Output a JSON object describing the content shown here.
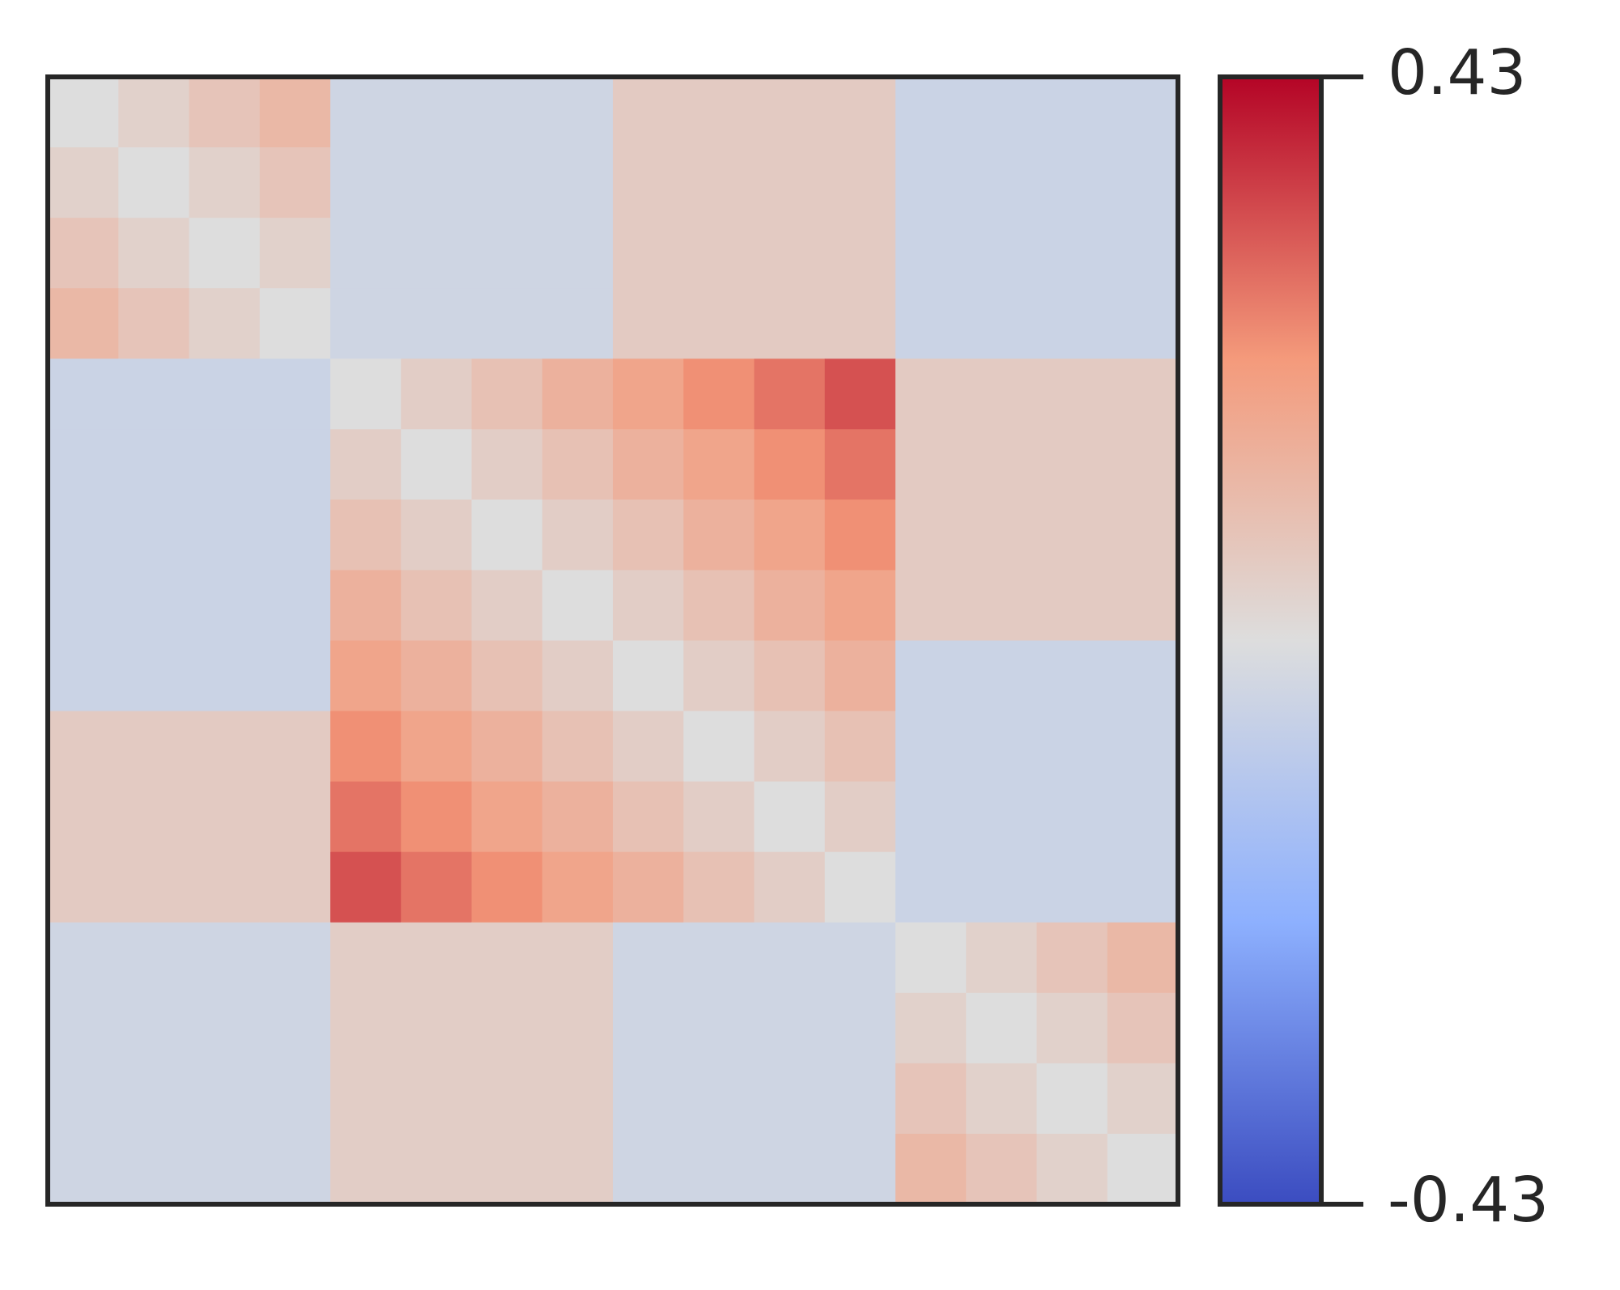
{
  "chart_data": {
    "type": "heatmap",
    "colormap": "coolwarm",
    "zlim": [
      -0.43,
      0.43
    ],
    "colorbar_ticks": [
      -0.43,
      0.43
    ],
    "z": [
      [
        0,
        0.04,
        0.08,
        0.12,
        -0.04,
        -0.04,
        -0.04,
        -0.04,
        0.06,
        0.06,
        0.06,
        0.06,
        -0.05,
        -0.05,
        -0.05,
        -0.05
      ],
      [
        0.04,
        0,
        0.04,
        0.08,
        -0.04,
        -0.04,
        -0.04,
        -0.04,
        0.06,
        0.06,
        0.06,
        0.06,
        -0.05,
        -0.05,
        -0.05,
        -0.05
      ],
      [
        0.08,
        0.04,
        0,
        0.04,
        -0.04,
        -0.04,
        -0.04,
        -0.04,
        0.06,
        0.06,
        0.06,
        0.06,
        -0.05,
        -0.05,
        -0.05,
        -0.05
      ],
      [
        0.12,
        0.08,
        0.04,
        0,
        -0.04,
        -0.04,
        -0.04,
        -0.04,
        0.06,
        0.06,
        0.06,
        0.06,
        -0.05,
        -0.05,
        -0.05,
        -0.05
      ],
      [
        -0.05,
        -0.05,
        -0.05,
        -0.05,
        0,
        0.05,
        0.09,
        0.14,
        0.18,
        0.23,
        0.27,
        0.32,
        0.06,
        0.06,
        0.06,
        0.06
      ],
      [
        -0.05,
        -0.05,
        -0.05,
        -0.05,
        0.05,
        0,
        0.05,
        0.09,
        0.14,
        0.18,
        0.23,
        0.27,
        0.06,
        0.06,
        0.06,
        0.06
      ],
      [
        -0.05,
        -0.05,
        -0.05,
        -0.05,
        0.09,
        0.05,
        0,
        0.05,
        0.09,
        0.14,
        0.18,
        0.23,
        0.06,
        0.06,
        0.06,
        0.06
      ],
      [
        -0.05,
        -0.05,
        -0.05,
        -0.05,
        0.14,
        0.09,
        0.05,
        0,
        0.05,
        0.09,
        0.14,
        0.18,
        0.06,
        0.06,
        0.06,
        0.06
      ],
      [
        -0.05,
        -0.05,
        -0.05,
        -0.05,
        0.18,
        0.14,
        0.09,
        0.05,
        0,
        0.05,
        0.09,
        0.14,
        -0.05,
        -0.05,
        -0.05,
        -0.05
      ],
      [
        0.06,
        0.06,
        0.06,
        0.06,
        0.23,
        0.18,
        0.14,
        0.09,
        0.05,
        0,
        0.05,
        0.09,
        -0.05,
        -0.05,
        -0.05,
        -0.05
      ],
      [
        0.06,
        0.06,
        0.06,
        0.06,
        0.27,
        0.23,
        0.18,
        0.14,
        0.09,
        0.05,
        0,
        0.05,
        -0.05,
        -0.05,
        -0.05,
        -0.05
      ],
      [
        0.06,
        0.06,
        0.06,
        0.06,
        0.32,
        0.27,
        0.23,
        0.18,
        0.14,
        0.09,
        0.05,
        0,
        -0.05,
        -0.05,
        -0.05,
        -0.05
      ],
      [
        -0.04,
        -0.04,
        -0.04,
        -0.04,
        0.05,
        0.05,
        0.05,
        0.05,
        -0.04,
        -0.04,
        -0.04,
        -0.04,
        0,
        0.04,
        0.08,
        0.12
      ],
      [
        -0.04,
        -0.04,
        -0.04,
        -0.04,
        0.05,
        0.05,
        0.05,
        0.05,
        -0.04,
        -0.04,
        -0.04,
        -0.04,
        0.04,
        0,
        0.04,
        0.08
      ],
      [
        -0.04,
        -0.04,
        -0.04,
        -0.04,
        0.05,
        0.05,
        0.05,
        0.05,
        -0.04,
        -0.04,
        -0.04,
        -0.04,
        0.08,
        0.04,
        0,
        0.04
      ],
      [
        -0.04,
        -0.04,
        -0.04,
        -0.04,
        0.05,
        0.05,
        0.05,
        0.05,
        -0.04,
        -0.04,
        -0.04,
        -0.04,
        0.12,
        0.08,
        0.04,
        0
      ]
    ]
  }
}
